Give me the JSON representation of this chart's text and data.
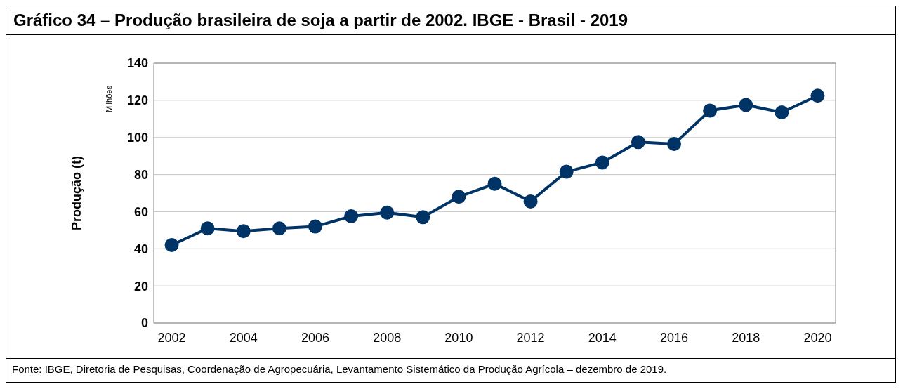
{
  "chart_data": {
    "type": "line",
    "title": "Gráfico 34 – Produção brasileira de soja a partir de 2002. IBGE - Brasil - 2019",
    "ylabel": "Produção (t)",
    "annotations": [
      "Milhões",
      "Fonte: IBGE, Diretoria de Pesquisas, Coordenação de Agropecuária, Levantamento Sistemático da Produção Agrícola – dezembro de 2019."
    ],
    "x": [
      2002,
      2003,
      2004,
      2005,
      2006,
      2007,
      2008,
      2009,
      2010,
      2011,
      2012,
      2013,
      2014,
      2015,
      2016,
      2017,
      2018,
      2019,
      2020
    ],
    "series": [
      {
        "color": "#003366",
        "values": [
          42,
          51,
          49.5,
          51,
          52,
          57.5,
          59.5,
          57,
          68,
          75,
          65.5,
          81.5,
          86.5,
          97.5,
          96.5,
          114.5,
          117.5,
          113.5,
          122.5
        ]
      }
    ],
    "xlim": [
      2001.5,
      2020.5
    ],
    "xticks": [
      2002,
      2004,
      2006,
      2008,
      2010,
      2012,
      2014,
      2016,
      2018,
      2020
    ],
    "ylim": [
      0,
      140
    ],
    "yticks": [
      0,
      20,
      40,
      60,
      80,
      100,
      120,
      140
    ],
    "grid": "y",
    "marker": "circle",
    "line_style": "solid"
  }
}
